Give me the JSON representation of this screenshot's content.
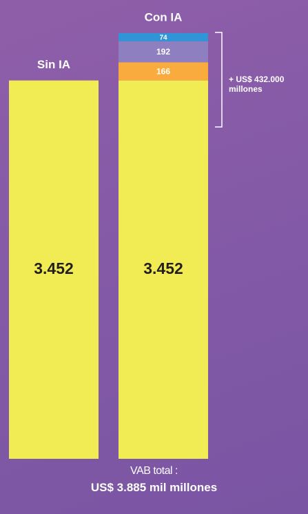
{
  "chart_data": {
    "type": "stacked_bar",
    "categories": [
      "Sin IA",
      "Con IA"
    ],
    "series": [
      {
        "color": "#f2ec54",
        "values": [
          3452,
          3452
        ],
        "value_labels": [
          "3.452",
          "3.452"
        ]
      },
      {
        "color": "#f9ab3d",
        "values": [
          null,
          166
        ]
      },
      {
        "color": "#8e80c0",
        "values": [
          null,
          192
        ]
      },
      {
        "color": "#2f95d6",
        "values": [
          null,
          74
        ]
      }
    ],
    "annotation": "+ US$ 432.000 millones",
    "footer": {
      "label": "VAB total :",
      "total": "US$ 3.885 mil millones"
    }
  }
}
